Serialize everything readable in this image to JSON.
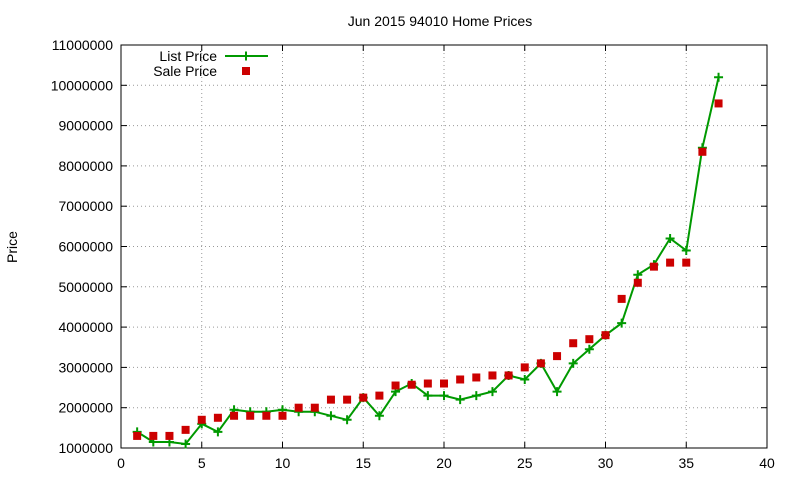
{
  "chart_data": {
    "type": "line",
    "title": "Jun 2015 94010 Home Prices",
    "xlabel": "",
    "ylabel": "Price",
    "xlim": [
      0,
      40
    ],
    "ylim": [
      1000000,
      11000000
    ],
    "xticks": [
      0,
      5,
      10,
      15,
      20,
      25,
      30,
      35,
      40
    ],
    "yticks": [
      1000000,
      2000000,
      3000000,
      4000000,
      5000000,
      6000000,
      7000000,
      8000000,
      9000000,
      10000000,
      11000000
    ],
    "grid": true,
    "legend": "top-left",
    "x": [
      1,
      2,
      3,
      4,
      5,
      6,
      7,
      8,
      9,
      10,
      11,
      12,
      13,
      14,
      15,
      16,
      17,
      18,
      19,
      20,
      21,
      22,
      23,
      24,
      25,
      26,
      27,
      28,
      29,
      30,
      31,
      32,
      33,
      34,
      35,
      36,
      37
    ],
    "series": [
      {
        "name": "List Price",
        "style": "linespoints",
        "color": "#009900",
        "values": [
          1400000,
          1150000,
          1150000,
          1100000,
          1600000,
          1400000,
          1950000,
          1900000,
          1900000,
          1950000,
          1900000,
          1900000,
          1800000,
          1700000,
          2250000,
          1800000,
          2400000,
          2600000,
          2300000,
          2300000,
          2200000,
          2300000,
          2400000,
          2800000,
          2700000,
          3100000,
          2400000,
          3100000,
          3450000,
          3800000,
          4100000,
          5300000,
          5550000,
          6200000,
          5900000,
          8450000,
          10200000
        ]
      },
      {
        "name": "Sale Price",
        "style": "points",
        "color": "#cc0000",
        "values": [
          1300000,
          1300000,
          1300000,
          1450000,
          1700000,
          1750000,
          1800000,
          1800000,
          1800000,
          1800000,
          2000000,
          2000000,
          2200000,
          2200000,
          2250000,
          2300000,
          2550000,
          2570000,
          2600000,
          2600000,
          2700000,
          2750000,
          2800000,
          2800000,
          3000000,
          3100000,
          3280000,
          3600000,
          3700000,
          3800000,
          4700000,
          5100000,
          5500000,
          5600000,
          5600000,
          8350000,
          9550000
        ]
      }
    ]
  }
}
